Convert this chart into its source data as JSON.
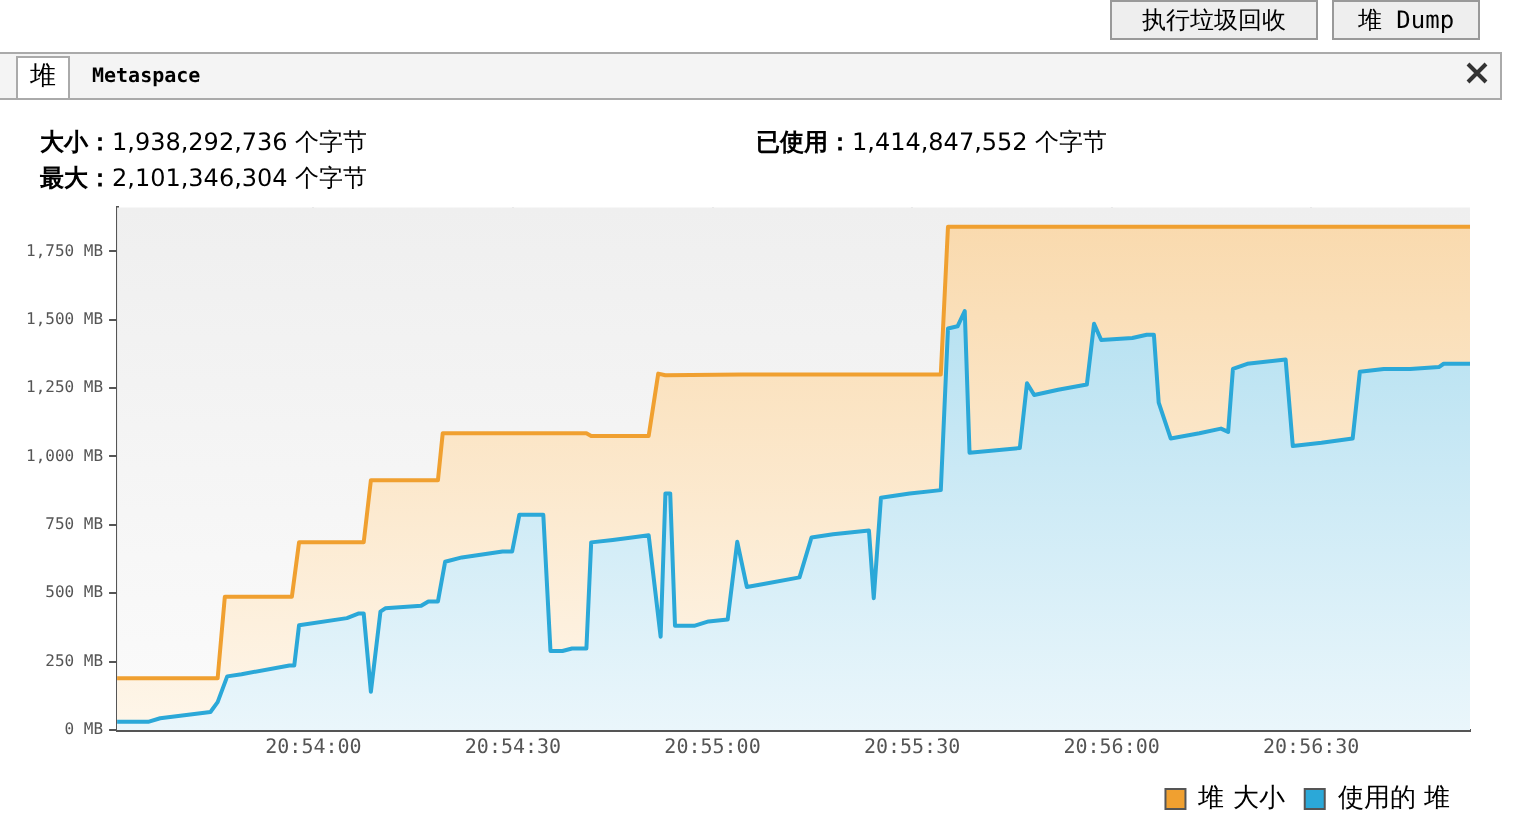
{
  "chart_data": {
    "type": "area",
    "annotations": [
      "执行垃圾回收",
      "堆 Dump",
      "堆",
      "Metaspace",
      "大小：1,938,292,736 个字节",
      "已使用：1,414,847,552 个字节",
      "最大：2,101,346,304 个字节"
    ],
    "xlim": [
      20.8918,
      20.9483
    ],
    "xticks": [
      {
        "value": 20.9,
        "label": "20:54:00"
      },
      {
        "value": 20.908333,
        "label": "20:54:30"
      },
      {
        "value": 20.916667,
        "label": "20:55:00"
      },
      {
        "value": 20.925,
        "label": "20:55:30"
      },
      {
        "value": 20.933333,
        "label": "20:56:00"
      },
      {
        "value": 20.941667,
        "label": "20:56:30"
      }
    ],
    "ylim": [
      0,
      1910
    ],
    "yticks": [
      {
        "value": 0,
        "label": "0 MB"
      },
      {
        "value": 250,
        "label": "250 MB"
      },
      {
        "value": 500,
        "label": "500 MB"
      },
      {
        "value": 750,
        "label": "750 MB"
      },
      {
        "value": 1000,
        "label": "1,000 MB"
      },
      {
        "value": 1250,
        "label": "1,250 MB"
      },
      {
        "value": 1500,
        "label": "1,500 MB"
      },
      {
        "value": 1750,
        "label": "1,750 MB"
      }
    ],
    "grid": true,
    "legend": "bottom right",
    "marker": "none",
    "line_style": "solid",
    "series": [
      {
        "name": "堆 大小",
        "color": "#f0a030",
        "x": [
          20.8918,
          20.896,
          20.8963,
          20.8991,
          20.8994,
          20.9021,
          20.9024,
          20.9052,
          20.9054,
          20.9114,
          20.9116,
          20.914,
          20.9144,
          20.9147,
          20.9179,
          20.9262,
          20.9265,
          20.9483
        ],
        "values": [
          189,
          189,
          487,
          487,
          686,
          686,
          913,
          913,
          1085,
          1085,
          1075,
          1075,
          1303,
          1297,
          1300,
          1300,
          1840,
          1840
        ]
      },
      {
        "name": "使用的 堆",
        "color": "#2ba8d8",
        "x": [
          20.8918,
          20.8931,
          20.8936,
          20.8957,
          20.896,
          20.8964,
          20.897,
          20.899,
          20.8992,
          20.8994,
          20.9014,
          20.9019,
          20.9021,
          20.9024,
          20.9028,
          20.903,
          20.9045,
          20.9048,
          20.9052,
          20.9055,
          20.9062,
          20.9079,
          20.9083,
          20.9086,
          20.9096,
          20.9099,
          20.9104,
          20.9108,
          20.9114,
          20.9116,
          20.9125,
          20.9133,
          20.914,
          20.9145,
          20.9147,
          20.9149,
          20.9151,
          20.9159,
          20.9165,
          20.9173,
          20.9177,
          20.9181,
          20.9188,
          20.9203,
          20.9208,
          20.9217,
          20.9232,
          20.9234,
          20.9237,
          20.9249,
          20.9262,
          20.9265,
          20.9269,
          20.9272,
          20.9274,
          20.9295,
          20.9298,
          20.9301,
          20.9311,
          20.9323,
          20.9326,
          20.9329,
          20.9342,
          20.9348,
          20.9351,
          20.9353,
          20.9358,
          20.937,
          20.9379,
          20.9382,
          20.9384,
          20.939,
          20.9406,
          20.9409,
          20.9421,
          20.9434,
          20.9437,
          20.9447,
          20.9458,
          20.947,
          20.9472,
          20.9483
        ],
        "values": [
          30,
          30,
          43,
          66,
          102,
          196,
          204,
          236,
          236,
          383,
          409,
          426,
          426,
          140,
          433,
          445,
          454,
          470,
          470,
          615,
          631,
          653,
          653,
          787,
          787,
          289,
          289,
          298,
          298,
          686,
          695,
          704,
          712,
          341,
          865,
          865,
          381,
          381,
          397,
          404,
          688,
          523,
          534,
          558,
          704,
          716,
          729,
          482,
          849,
          865,
          877,
          1468,
          1476,
          1532,
          1014,
          1031,
          1268,
          1225,
          1244,
          1263,
          1485,
          1426,
          1433,
          1445,
          1445,
          1197,
          1066,
          1085,
          1102,
          1090,
          1320,
          1339,
          1355,
          1038,
          1050,
          1066,
          1310,
          1320,
          1320,
          1327,
          1339,
          1339
        ]
      }
    ]
  }
}
